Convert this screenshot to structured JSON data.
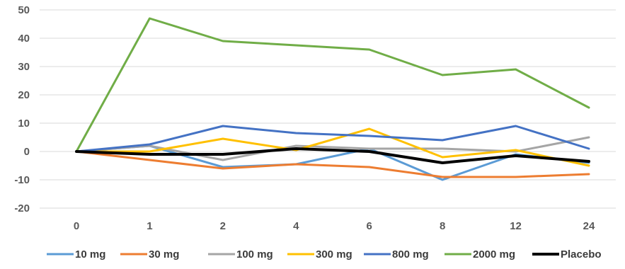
{
  "chart_data": {
    "type": "line",
    "categories": [
      "0",
      "1",
      "2",
      "4",
      "6",
      "8",
      "12",
      "24"
    ],
    "ylim": [
      -20,
      50
    ],
    "yticks": [
      "50",
      "40",
      "30",
      "20",
      "10",
      "0",
      "-10",
      "-20"
    ],
    "grid": true,
    "legend_position": "bottom",
    "series": [
      {
        "name": "10 mg",
        "color": "#5B9BD5",
        "values": [
          0,
          2,
          -5.5,
          -4.5,
          1,
          -10,
          -1,
          -4
        ]
      },
      {
        "name": "30 mg",
        "color": "#ED7D31",
        "values": [
          0,
          -3,
          -6,
          -4.5,
          -5.5,
          -9,
          -9,
          -8
        ]
      },
      {
        "name": "100 mg",
        "color": "#A5A5A5",
        "values": [
          0,
          2,
          -3,
          2,
          1,
          1,
          0,
          5
        ]
      },
      {
        "name": "300 mg",
        "color": "#FFC000",
        "values": [
          0,
          0,
          4.5,
          0.5,
          8,
          -2,
          0.5,
          -5
        ]
      },
      {
        "name": "800 mg",
        "color": "#4472C4",
        "values": [
          0,
          2.5,
          9,
          6.5,
          5.5,
          4,
          9,
          1
        ]
      },
      {
        "name": "2000 mg",
        "color": "#70AD47",
        "values": [
          0,
          47,
          39,
          37.5,
          36,
          27,
          29,
          15.5
        ]
      },
      {
        "name": "Placebo",
        "color": "#000000",
        "values": [
          0,
          -1,
          -1,
          1,
          0,
          -4,
          -1.5,
          -3.5
        ]
      }
    ]
  }
}
